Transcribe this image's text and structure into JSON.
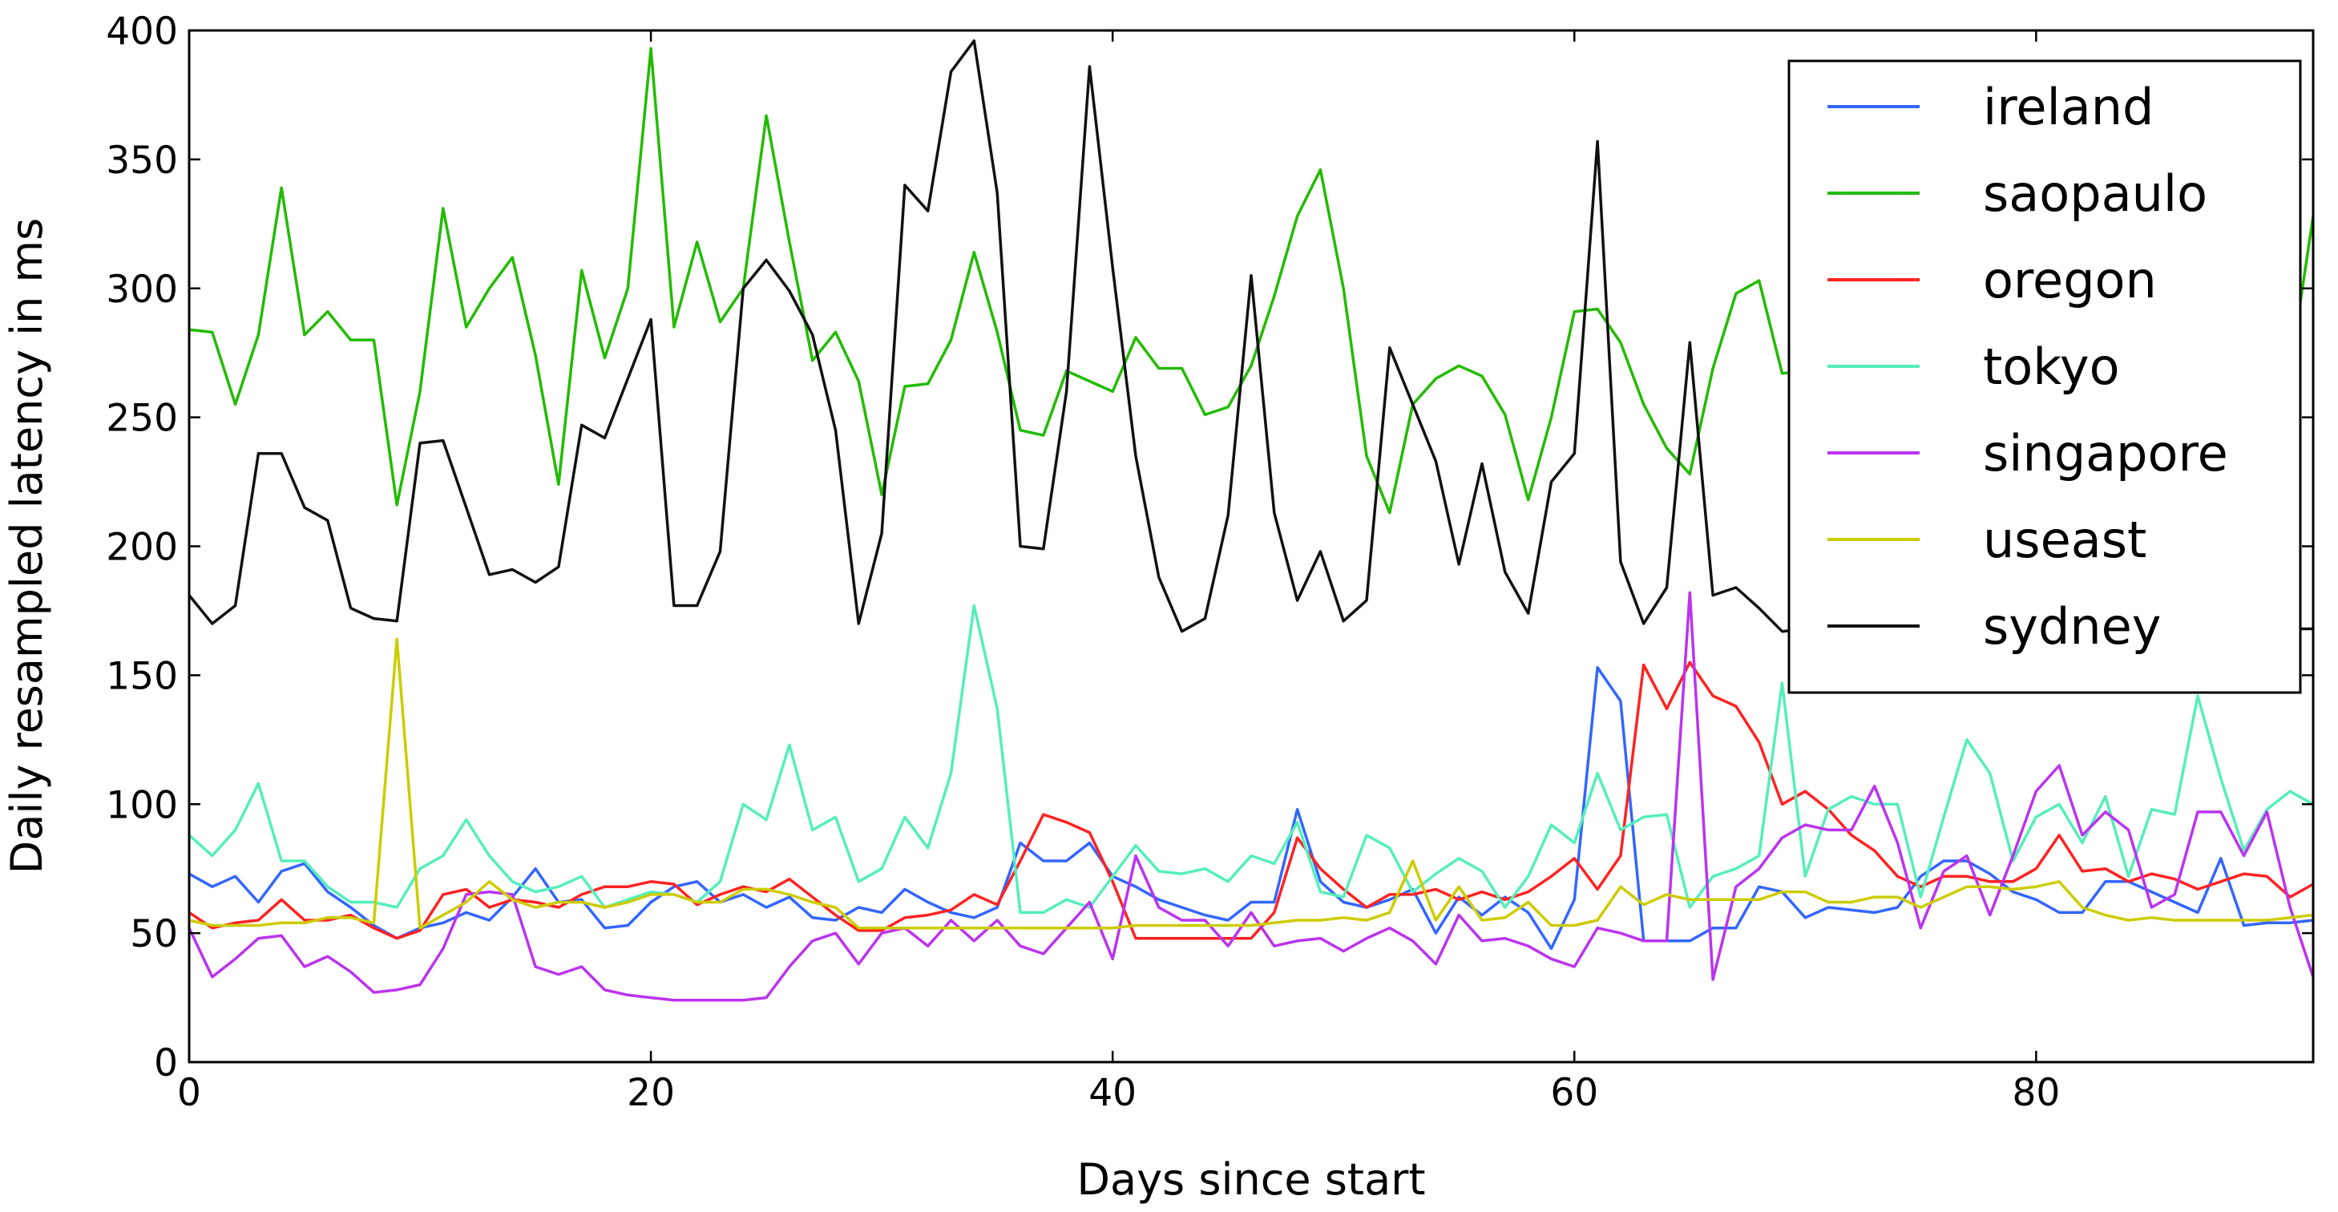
{
  "chart_data": {
    "type": "line",
    "title": "",
    "xlabel": "Days since start",
    "ylabel": "Daily resampled latency in ms",
    "xlim": [
      0,
      92
    ],
    "ylim": [
      0,
      400
    ],
    "xticks": [
      0,
      20,
      40,
      60,
      80
    ],
    "yticks": [
      0,
      50,
      100,
      150,
      200,
      250,
      300,
      350,
      400
    ],
    "grid": false,
    "legend_position": "top-right",
    "x": [
      0,
      1,
      2,
      3,
      4,
      5,
      6,
      7,
      8,
      9,
      10,
      11,
      12,
      13,
      14,
      15,
      16,
      17,
      18,
      19,
      20,
      21,
      22,
      23,
      24,
      25,
      26,
      27,
      28,
      29,
      30,
      31,
      32,
      33,
      34,
      35,
      36,
      37,
      38,
      39,
      40,
      41,
      42,
      43,
      44,
      45,
      46,
      47,
      48,
      49,
      50,
      51,
      52,
      53,
      54,
      55,
      56,
      57,
      58,
      59,
      60,
      61,
      62,
      63,
      64,
      65,
      66,
      67,
      68,
      69,
      70,
      71,
      72,
      73,
      74,
      75,
      76,
      77,
      78,
      79,
      80,
      81,
      82,
      83,
      84,
      85,
      86,
      87,
      88,
      89,
      90,
      91,
      92
    ],
    "series": [
      {
        "name": "ireland",
        "color": "#3366ff",
        "values": [
          73,
          68,
          72,
          62,
          74,
          77,
          66,
          60,
          53,
          48,
          52,
          54,
          58,
          55,
          64,
          75,
          62,
          63,
          52,
          53,
          62,
          68,
          70,
          62,
          65,
          60,
          64,
          56,
          55,
          60,
          58,
          67,
          62,
          58,
          56,
          60,
          85,
          78,
          78,
          85,
          72,
          68,
          63,
          60,
          57,
          55,
          62,
          62,
          98,
          70,
          62,
          60,
          63,
          67,
          50,
          64,
          57,
          64,
          58,
          44,
          63,
          153,
          140,
          47,
          47,
          47,
          52,
          52,
          68,
          66,
          56,
          60,
          59,
          58,
          60,
          72,
          78,
          78,
          73,
          66,
          63,
          58,
          58,
          70,
          70,
          66,
          62,
          58,
          79,
          53,
          54,
          54,
          55
        ]
      },
      {
        "name": "saopaulo",
        "color": "#22bb00",
        "values": [
          284,
          283,
          255,
          282,
          339,
          282,
          291,
          280,
          280,
          216,
          260,
          331,
          285,
          300,
          312,
          274,
          224,
          307,
          273,
          300,
          393,
          285,
          318,
          287,
          300,
          367,
          318,
          272,
          283,
          264,
          220,
          262,
          263,
          280,
          314,
          283,
          245,
          243,
          268,
          264,
          260,
          281,
          269,
          269,
          251,
          254,
          270,
          297,
          328,
          346,
          300,
          235,
          213,
          255,
          265,
          270,
          266,
          251,
          218,
          250,
          291,
          292,
          279,
          255,
          238,
          228,
          269,
          298,
          303,
          267,
          268,
          270,
          262,
          262,
          268,
          268,
          270,
          268,
          268,
          268,
          270,
          270,
          268,
          268,
          268,
          270,
          270,
          268,
          268,
          270,
          270,
          268,
          328
        ]
      },
      {
        "name": "oregon",
        "color": "#ff2222",
        "values": [
          58,
          52,
          54,
          55,
          63,
          55,
          55,
          57,
          52,
          48,
          51,
          65,
          67,
          60,
          63,
          62,
          60,
          65,
          68,
          68,
          70,
          69,
          61,
          65,
          68,
          66,
          71,
          64,
          57,
          51,
          51,
          56,
          57,
          59,
          65,
          61,
          78,
          96,
          93,
          89,
          70,
          48,
          48,
          48,
          48,
          48,
          48,
          58,
          87,
          75,
          67,
          60,
          65,
          65,
          67,
          63,
          66,
          63,
          66,
          72,
          79,
          67,
          80,
          154,
          137,
          155,
          142,
          138,
          124,
          100,
          105,
          98,
          88,
          82,
          72,
          68,
          72,
          72,
          70,
          70,
          75,
          88,
          74,
          75,
          70,
          73,
          71,
          67,
          70,
          73,
          72,
          64,
          69
        ]
      },
      {
        "name": "tokyo",
        "color": "#55eebb",
        "values": [
          88,
          80,
          90,
          108,
          78,
          78,
          68,
          62,
          62,
          60,
          75,
          80,
          94,
          80,
          70,
          66,
          68,
          72,
          60,
          63,
          66,
          65,
          62,
          70,
          100,
          94,
          123,
          90,
          95,
          70,
          75,
          95,
          83,
          112,
          177,
          137,
          58,
          58,
          63,
          60,
          72,
          84,
          74,
          73,
          75,
          70,
          80,
          77,
          93,
          66,
          64,
          88,
          83,
          66,
          73,
          79,
          74,
          60,
          72,
          92,
          85,
          112,
          90,
          95,
          96,
          60,
          72,
          75,
          80,
          147,
          72,
          98,
          103,
          100,
          100,
          64,
          95,
          125,
          112,
          78,
          95,
          100,
          85,
          103,
          72,
          98,
          96,
          142,
          110,
          82,
          98,
          105,
          100
        ]
      },
      {
        "name": "singapore",
        "color": "#bb33ee",
        "values": [
          52,
          33,
          40,
          48,
          49,
          37,
          41,
          35,
          27,
          28,
          30,
          44,
          65,
          66,
          65,
          37,
          34,
          37,
          28,
          26,
          25,
          24,
          24,
          24,
          24,
          25,
          37,
          47,
          50,
          38,
          50,
          52,
          45,
          55,
          47,
          55,
          45,
          42,
          52,
          62,
          40,
          80,
          60,
          55,
          55,
          45,
          58,
          45,
          47,
          48,
          43,
          48,
          52,
          47,
          38,
          57,
          47,
          48,
          45,
          40,
          37,
          52,
          50,
          47,
          47,
          182,
          32,
          68,
          75,
          87,
          92,
          90,
          90,
          107,
          85,
          52,
          74,
          80,
          57,
          80,
          105,
          115,
          88,
          97,
          90,
          60,
          65,
          97,
          97,
          80,
          97,
          60,
          33
        ]
      },
      {
        "name": "useast",
        "color": "#cccc00",
        "values": [
          55,
          53,
          53,
          53,
          54,
          54,
          56,
          56,
          54,
          164,
          52,
          57,
          62,
          70,
          63,
          60,
          62,
          62,
          60,
          62,
          65,
          65,
          62,
          62,
          67,
          67,
          65,
          62,
          60,
          52,
          52,
          52,
          52,
          52,
          52,
          52,
          52,
          52,
          52,
          52,
          52,
          53,
          53,
          53,
          53,
          53,
          53,
          54,
          55,
          55,
          56,
          55,
          58,
          78,
          55,
          68,
          55,
          56,
          62,
          53,
          53,
          55,
          68,
          61,
          65,
          63,
          63,
          63,
          63,
          66,
          66,
          62,
          62,
          64,
          64,
          60,
          64,
          68,
          68,
          67,
          68,
          70,
          60,
          57,
          55,
          56,
          55,
          55,
          55,
          55,
          55,
          56,
          57
        ]
      },
      {
        "name": "sydney",
        "color": "#111111",
        "values": [
          181,
          170,
          177,
          236,
          236,
          215,
          210,
          176,
          172,
          171,
          240,
          241,
          215,
          189,
          191,
          186,
          192,
          247,
          242,
          265,
          288,
          177,
          177,
          198,
          300,
          311,
          299,
          282,
          245,
          170,
          205,
          340,
          330,
          384,
          396,
          337,
          200,
          199,
          260,
          386,
          308,
          235,
          188,
          167,
          172,
          212,
          305,
          213,
          179,
          198,
          171,
          179,
          277,
          255,
          233,
          193,
          232,
          190,
          174,
          225,
          236,
          357,
          194,
          170,
          184,
          279,
          181,
          184,
          176,
          167,
          168,
          170,
          168,
          168,
          168,
          168,
          168,
          168,
          168,
          168,
          168,
          168,
          168,
          168,
          168,
          168,
          168,
          168,
          168,
          168,
          168,
          168,
          168
        ]
      }
    ]
  }
}
